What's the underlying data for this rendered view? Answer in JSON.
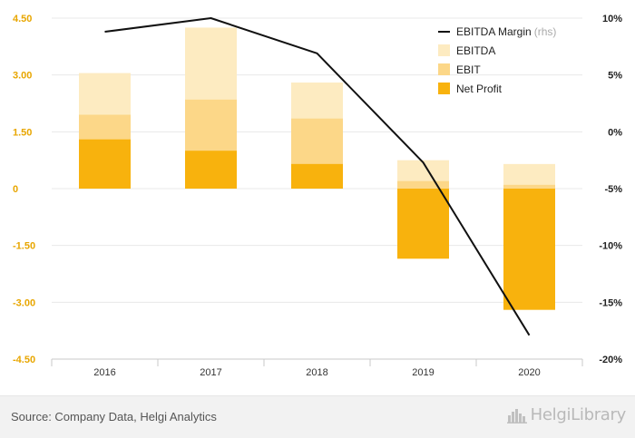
{
  "chart_data": {
    "type": "bar",
    "subtype": "stacked-bar-with-line",
    "categories": [
      "2016",
      "2017",
      "2018",
      "2019",
      "2020"
    ],
    "series": [
      {
        "name": "EBITDA",
        "values": [
          3.05,
          4.25,
          2.8,
          0.75,
          0.65
        ],
        "color": "#fdebc1",
        "kind": "bar"
      },
      {
        "name": "EBIT",
        "values": [
          1.95,
          2.35,
          1.85,
          0.2,
          0.1
        ],
        "color": "#fcd788",
        "kind": "bar"
      },
      {
        "name": "Net Profit",
        "values": [
          1.3,
          1.0,
          0.65,
          -1.85,
          -3.2
        ],
        "color": "#f8b20d",
        "kind": "bar"
      },
      {
        "name": "EBITDA Margin",
        "values": [
          8.8,
          10.0,
          6.9,
          -2.7,
          -17.9
        ],
        "color": "#111111",
        "kind": "line",
        "axis": "right"
      }
    ],
    "y_left": {
      "min": -4.5,
      "max": 4.5,
      "ticks": [
        4.5,
        3.0,
        1.5,
        0,
        -1.5,
        -3.0,
        -4.5
      ],
      "tick_labels": [
        "4.50",
        "3.00",
        "1.50",
        "0",
        "-1.50",
        "-3.00",
        "-4.50"
      ]
    },
    "y_right": {
      "min": -20,
      "max": 10,
      "ticks": [
        10,
        5,
        0,
        -5,
        -10,
        -15,
        -20
      ],
      "tick_labels": [
        "10%",
        "5%",
        "0%",
        "-5%",
        "-10%",
        "-15%",
        "-20%"
      ]
    },
    "legend": {
      "position": "top-right",
      "note": "(rhs)"
    },
    "grid": true
  },
  "colors": {
    "left_tick": "#e8a600",
    "grid": "#e8e8e8",
    "axis": "#c8c8c8"
  },
  "footer": {
    "source": "Source: Company Data, Helgi Analytics",
    "brand": "HelgiLibrary",
    "brand_icon": "city-skyline-icon"
  }
}
